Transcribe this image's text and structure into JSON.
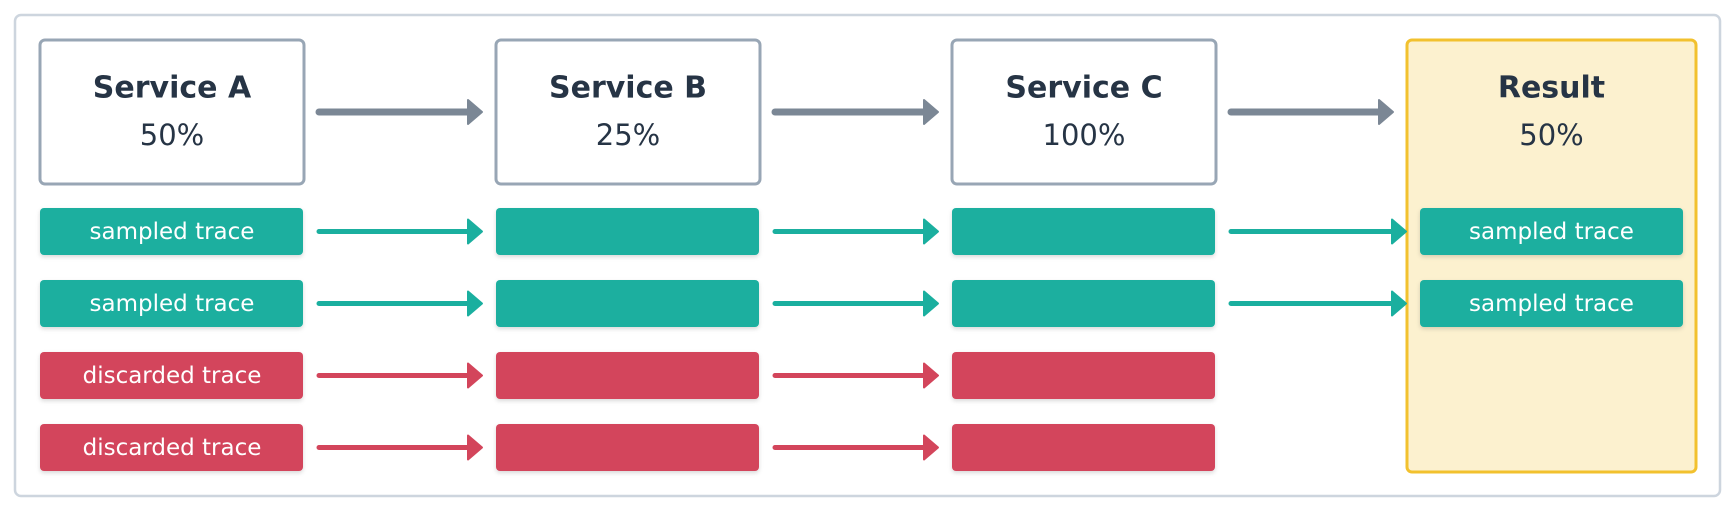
{
  "services": [
    {
      "name": "Service A",
      "rate": "50%"
    },
    {
      "name": "Service B",
      "rate": "25%"
    },
    {
      "name": "Service C",
      "rate": "100%"
    }
  ],
  "result": {
    "name": "Result",
    "rate": "50%",
    "traces": [
      "sampled trace",
      "sampled trace"
    ]
  },
  "traces": [
    {
      "label": "sampled trace",
      "color": "#1aaf9f"
    },
    {
      "label": "sampled trace",
      "color": "#1aaf9f"
    },
    {
      "label": "discarded trace",
      "color": "#d3455b"
    },
    {
      "label": "discarded trace",
      "color": "#d3455b"
    }
  ]
}
